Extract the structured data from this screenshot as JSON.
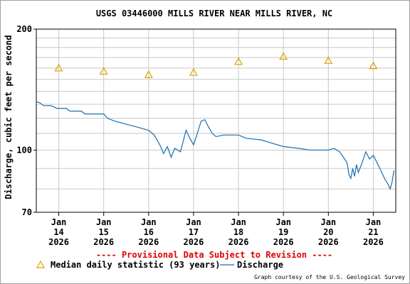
{
  "chart_data": {
    "type": "line",
    "title": "USGS 03446000 MILLS RIVER NEAR MILLS RIVER, NC",
    "ylabel": "Discharge, cubic feet per second",
    "xlabel": "",
    "y_scale": "log",
    "ylim": [
      70,
      200
    ],
    "y_ticks": [
      "200",
      "100",
      "70"
    ],
    "y_tick_values": [
      200,
      100,
      70
    ],
    "grid": true,
    "x_range_days": [
      "2026-01-13T12:00",
      "2026-01-21T12:00"
    ],
    "x_ticks": [
      {
        "month": "Jan",
        "day": "14",
        "year": "2026",
        "at": "2026-01-14"
      },
      {
        "month": "Jan",
        "day": "15",
        "year": "2026",
        "at": "2026-01-15"
      },
      {
        "month": "Jan",
        "day": "16",
        "year": "2026",
        "at": "2026-01-16"
      },
      {
        "month": "Jan",
        "day": "17",
        "year": "2026",
        "at": "2026-01-17"
      },
      {
        "month": "Jan",
        "day": "18",
        "year": "2026",
        "at": "2026-01-18"
      },
      {
        "month": "Jan",
        "day": "19",
        "year": "2026",
        "at": "2026-01-19"
      },
      {
        "month": "Jan",
        "day": "20",
        "year": "2026",
        "at": "2026-01-20"
      },
      {
        "month": "Jan",
        "day": "21",
        "year": "2026",
        "at": "2026-01-21"
      }
    ],
    "series": [
      {
        "name": "Median daily statistic (93 years)",
        "kind": "marker-triangle",
        "color": "#e0a000",
        "points": [
          {
            "x": "2026-01-14",
            "y": 160
          },
          {
            "x": "2026-01-15",
            "y": 157
          },
          {
            "x": "2026-01-16",
            "y": 154
          },
          {
            "x": "2026-01-17",
            "y": 156
          },
          {
            "x": "2026-01-18",
            "y": 166
          },
          {
            "x": "2026-01-19",
            "y": 171
          },
          {
            "x": "2026-01-20",
            "y": 167
          },
          {
            "x": "2026-01-21",
            "y": 162
          }
        ]
      },
      {
        "name": "Discharge",
        "kind": "line",
        "color": "#1a6fb0",
        "points": [
          {
            "x": "2026-01-13T12:00",
            "y": 132
          },
          {
            "x": "2026-01-13T14:00",
            "y": 131
          },
          {
            "x": "2026-01-13T16:00",
            "y": 129
          },
          {
            "x": "2026-01-13T20:00",
            "y": 129
          },
          {
            "x": "2026-01-13T23:00",
            "y": 127
          },
          {
            "x": "2026-01-14T04:00",
            "y": 127
          },
          {
            "x": "2026-01-14T06:00",
            "y": 125
          },
          {
            "x": "2026-01-14T12:00",
            "y": 125
          },
          {
            "x": "2026-01-14T14:00",
            "y": 123
          },
          {
            "x": "2026-01-15T00:00",
            "y": 123
          },
          {
            "x": "2026-01-15T02:00",
            "y": 120
          },
          {
            "x": "2026-01-15T06:00",
            "y": 118
          },
          {
            "x": "2026-01-15T12:00",
            "y": 116
          },
          {
            "x": "2026-01-15T18:00",
            "y": 114
          },
          {
            "x": "2026-01-16T00:00",
            "y": 112
          },
          {
            "x": "2026-01-16T03:00",
            "y": 109
          },
          {
            "x": "2026-01-16T06:00",
            "y": 103
          },
          {
            "x": "2026-01-16T08:00",
            "y": 98
          },
          {
            "x": "2026-01-16T10:00",
            "y": 102
          },
          {
            "x": "2026-01-16T12:00",
            "y": 96
          },
          {
            "x": "2026-01-16T14:00",
            "y": 101
          },
          {
            "x": "2026-01-16T17:00",
            "y": 99
          },
          {
            "x": "2026-01-16T20:00",
            "y": 112
          },
          {
            "x": "2026-01-16T22:00",
            "y": 107
          },
          {
            "x": "2026-01-17T00:00",
            "y": 103
          },
          {
            "x": "2026-01-17T02:00",
            "y": 110
          },
          {
            "x": "2026-01-17T04:00",
            "y": 118
          },
          {
            "x": "2026-01-17T06:00",
            "y": 119
          },
          {
            "x": "2026-01-17T08:00",
            "y": 114
          },
          {
            "x": "2026-01-17T10:00",
            "y": 110
          },
          {
            "x": "2026-01-17T12:00",
            "y": 108
          },
          {
            "x": "2026-01-17T16:00",
            "y": 109
          },
          {
            "x": "2026-01-18T00:00",
            "y": 109
          },
          {
            "x": "2026-01-18T04:00",
            "y": 107
          },
          {
            "x": "2026-01-18T12:00",
            "y": 106
          },
          {
            "x": "2026-01-18T18:00",
            "y": 104
          },
          {
            "x": "2026-01-19T00:00",
            "y": 102
          },
          {
            "x": "2026-01-19T08:00",
            "y": 101
          },
          {
            "x": "2026-01-19T14:00",
            "y": 100
          },
          {
            "x": "2026-01-20T00:00",
            "y": 100
          },
          {
            "x": "2026-01-20T03:00",
            "y": 101
          },
          {
            "x": "2026-01-20T06:00",
            "y": 99
          },
          {
            "x": "2026-01-20T08:00",
            "y": 96
          },
          {
            "x": "2026-01-20T10:00",
            "y": 93
          },
          {
            "x": "2026-01-20T11:00",
            "y": 87
          },
          {
            "x": "2026-01-20T12:00",
            "y": 85
          },
          {
            "x": "2026-01-20T13:00",
            "y": 90
          },
          {
            "x": "2026-01-20T14:00",
            "y": 86
          },
          {
            "x": "2026-01-20T15:00",
            "y": 92
          },
          {
            "x": "2026-01-20T16:00",
            "y": 88
          },
          {
            "x": "2026-01-20T18:00",
            "y": 93
          },
          {
            "x": "2026-01-20T20:00",
            "y": 99
          },
          {
            "x": "2026-01-20T22:00",
            "y": 95
          },
          {
            "x": "2026-01-21T00:00",
            "y": 97
          },
          {
            "x": "2026-01-21T02:00",
            "y": 93
          },
          {
            "x": "2026-01-21T04:00",
            "y": 89
          },
          {
            "x": "2026-01-21T06:00",
            "y": 85
          },
          {
            "x": "2026-01-21T08:00",
            "y": 82
          },
          {
            "x": "2026-01-21T09:00",
            "y": 80
          },
          {
            "x": "2026-01-21T10:00",
            "y": 83
          },
          {
            "x": "2026-01-21T11:00",
            "y": 89
          }
        ]
      }
    ],
    "legend": [
      {
        "label": "Median daily statistic (93 years)",
        "symbol": "triangle",
        "color": "#e0a000"
      },
      {
        "label": "Discharge",
        "symbol": "line",
        "color": "#1a6fb0"
      }
    ],
    "legend_position": "bottom",
    "annotations": [
      {
        "text": "---- Provisional Data Subject to Revision ----",
        "color": "#e00000"
      },
      {
        "text": "Graph courtesy of the U.S. Geological Survey"
      }
    ]
  }
}
